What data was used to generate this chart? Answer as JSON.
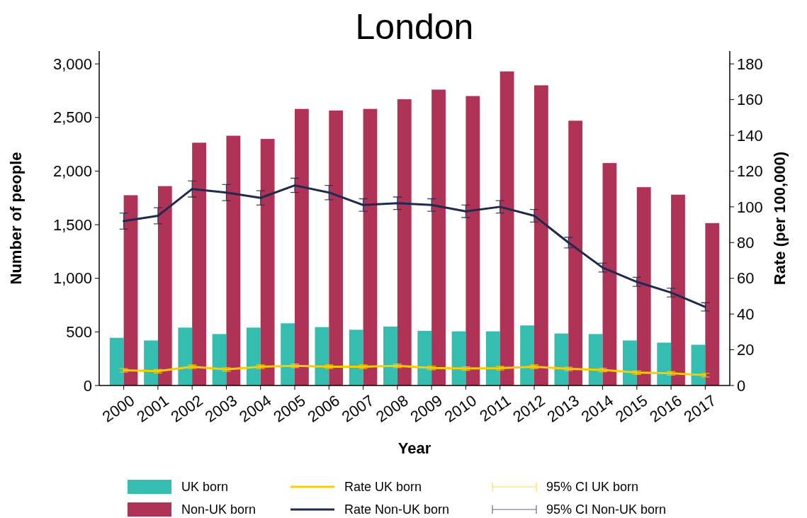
{
  "chart_data": {
    "type": "bar",
    "title": "London",
    "xlabel": "Year",
    "ylabel": "Number of people",
    "y2label": "Rate (per 100,000)",
    "categories": [
      "2000",
      "2001",
      "2002",
      "2003",
      "2004",
      "2005",
      "2006",
      "2007",
      "2008",
      "2009",
      "2010",
      "2011",
      "2012",
      "2013",
      "2014",
      "2015",
      "2016",
      "2017"
    ],
    "series": [
      {
        "name": "UK born",
        "color": "#36bdb1",
        "values": [
          445,
          420,
          540,
          480,
          540,
          580,
          545,
          520,
          550,
          510,
          505,
          505,
          560,
          485,
          480,
          420,
          400,
          380
        ]
      },
      {
        "name": "Non-UK born",
        "color": "#ae3357",
        "values": [
          1775,
          1860,
          2265,
          2330,
          2300,
          2580,
          2565,
          2580,
          2670,
          2760,
          2700,
          2930,
          2800,
          2470,
          2075,
          1850,
          1780,
          1515
        ]
      },
      {
        "name": "Rate UK born",
        "type": "line",
        "axis": "y2",
        "color": "#f7cc00",
        "values": [
          8.5,
          8,
          10.5,
          9,
          10.5,
          11,
          10.5,
          10.5,
          11,
          9.8,
          9.5,
          9.7,
          10.5,
          9.3,
          8.7,
          7.2,
          6.8,
          5.8
        ],
        "errors": [
          1,
          1,
          1,
          1,
          1,
          1,
          1,
          1,
          1,
          1,
          1,
          1,
          1,
          1,
          1,
          1,
          1,
          1
        ]
      },
      {
        "name": "Rate Non-UK born",
        "type": "line",
        "axis": "y2",
        "color": "#1f2a50",
        "values": [
          92,
          95,
          110,
          108,
          105,
          112,
          108,
          101,
          102,
          101,
          97.5,
          100,
          95,
          80,
          66,
          58,
          52,
          44
        ],
        "errors": [
          4.5,
          4.5,
          4.5,
          4.5,
          4,
          4,
          4,
          3.5,
          3.5,
          3.5,
          3.5,
          3.5,
          3.5,
          3,
          2.5,
          2.5,
          2.5,
          2.3
        ]
      }
    ],
    "annotations": [
      "95% CI UK born",
      "95% CI Non-UK born"
    ],
    "ylim": [
      0,
      3120
    ],
    "yticks": [
      {
        "value": 0,
        "label": "0"
      },
      {
        "value": 500,
        "label": "500"
      },
      {
        "value": 1000,
        "label": "1,000"
      },
      {
        "value": 1500,
        "label": "1,500"
      },
      {
        "value": 2000,
        "label": "2,000"
      },
      {
        "value": 2500,
        "label": "2,500"
      },
      {
        "value": 3000,
        "label": "3,000"
      }
    ],
    "y2lim": [
      0,
      187.2
    ],
    "y2ticks": [
      0,
      20,
      40,
      60,
      80,
      100,
      120,
      140,
      160,
      180
    ],
    "legend": "bottom",
    "grid": false
  }
}
